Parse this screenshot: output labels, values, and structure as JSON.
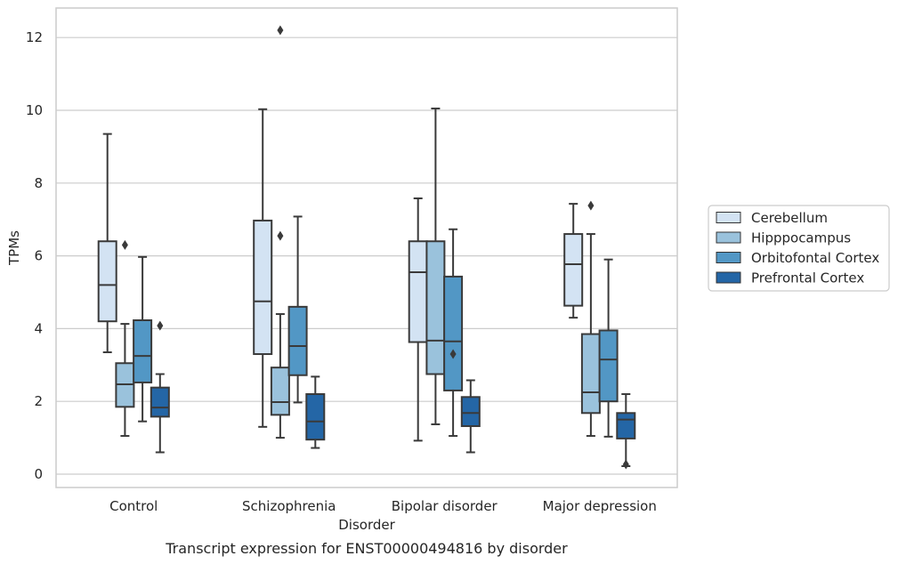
{
  "chart_data": {
    "type": "box",
    "caption": "Transcript expression for ENST00000494816 by disorder",
    "xlabel": "Disorder",
    "ylabel": "TPMs",
    "ylim": [
      -0.3,
      12.8
    ],
    "yticks": [
      0,
      2,
      4,
      6,
      8,
      10,
      12
    ],
    "grid": true,
    "legend_position": "right",
    "categories": [
      "Control",
      "Schizophrenia",
      "Bipolar disorder",
      "Major depression"
    ],
    "series": [
      {
        "name": "Cerebellum",
        "color": "#d3e3f3",
        "boxes": [
          {
            "whisker_low": 3.35,
            "q1": 4.2,
            "median": 5.2,
            "q3": 6.4,
            "whisker_high": 9.35,
            "outliers": []
          },
          {
            "whisker_low": 1.3,
            "q1": 3.3,
            "median": 4.75,
            "q3": 6.97,
            "whisker_high": 10.03,
            "outliers": []
          },
          {
            "whisker_low": 0.92,
            "q1": 3.63,
            "median": 5.55,
            "q3": 6.4,
            "whisker_high": 7.58,
            "outliers": []
          },
          {
            "whisker_low": 4.3,
            "q1": 4.63,
            "median": 5.77,
            "q3": 6.6,
            "whisker_high": 7.43,
            "outliers": []
          }
        ]
      },
      {
        "name": "Hipppocampus",
        "color": "#9ac2dc",
        "boxes": [
          {
            "whisker_low": 1.05,
            "q1": 1.85,
            "median": 2.47,
            "q3": 3.05,
            "whisker_high": 4.13,
            "outliers": [
              6.3
            ]
          },
          {
            "whisker_low": 1.0,
            "q1": 1.63,
            "median": 1.98,
            "q3": 2.93,
            "whisker_high": 4.4,
            "outliers": [
              6.55,
              12.2
            ]
          },
          {
            "whisker_low": 1.37,
            "q1": 2.75,
            "median": 3.67,
            "q3": 6.4,
            "whisker_high": 10.05,
            "outliers": []
          },
          {
            "whisker_low": 1.05,
            "q1": 1.68,
            "median": 2.25,
            "q3": 3.85,
            "whisker_high": 6.6,
            "outliers": [
              7.38
            ]
          }
        ]
      },
      {
        "name": "Orbitofontal Cortex",
        "color": "#5297c5",
        "boxes": [
          {
            "whisker_low": 1.45,
            "q1": 2.52,
            "median": 3.25,
            "q3": 4.23,
            "whisker_high": 5.97,
            "outliers": []
          },
          {
            "whisker_low": 1.97,
            "q1": 2.72,
            "median": 3.52,
            "q3": 4.6,
            "whisker_high": 7.08,
            "outliers": []
          },
          {
            "whisker_low": 1.05,
            "q1": 2.3,
            "median": 3.65,
            "q3": 5.43,
            "whisker_high": 6.73,
            "outliers": [
              3.3
            ]
          },
          {
            "whisker_low": 1.03,
            "q1": 2.0,
            "median": 3.15,
            "q3": 3.95,
            "whisker_high": 5.9,
            "outliers": []
          }
        ]
      },
      {
        "name": "Prefrontal Cortex",
        "color": "#2466a6",
        "boxes": [
          {
            "whisker_low": 0.6,
            "q1": 1.58,
            "median": 1.83,
            "q3": 2.38,
            "whisker_high": 2.75,
            "outliers": [
              4.08
            ]
          },
          {
            "whisker_low": 0.72,
            "q1": 0.95,
            "median": 1.45,
            "q3": 2.2,
            "whisker_high": 2.68,
            "outliers": []
          },
          {
            "whisker_low": 0.6,
            "q1": 1.32,
            "median": 1.68,
            "q3": 2.12,
            "whisker_high": 2.58,
            "outliers": []
          },
          {
            "whisker_low": 0.22,
            "q1": 0.98,
            "median": 1.5,
            "q3": 1.68,
            "whisker_high": 2.2,
            "outliers": [
              0.27
            ]
          }
        ]
      }
    ]
  }
}
